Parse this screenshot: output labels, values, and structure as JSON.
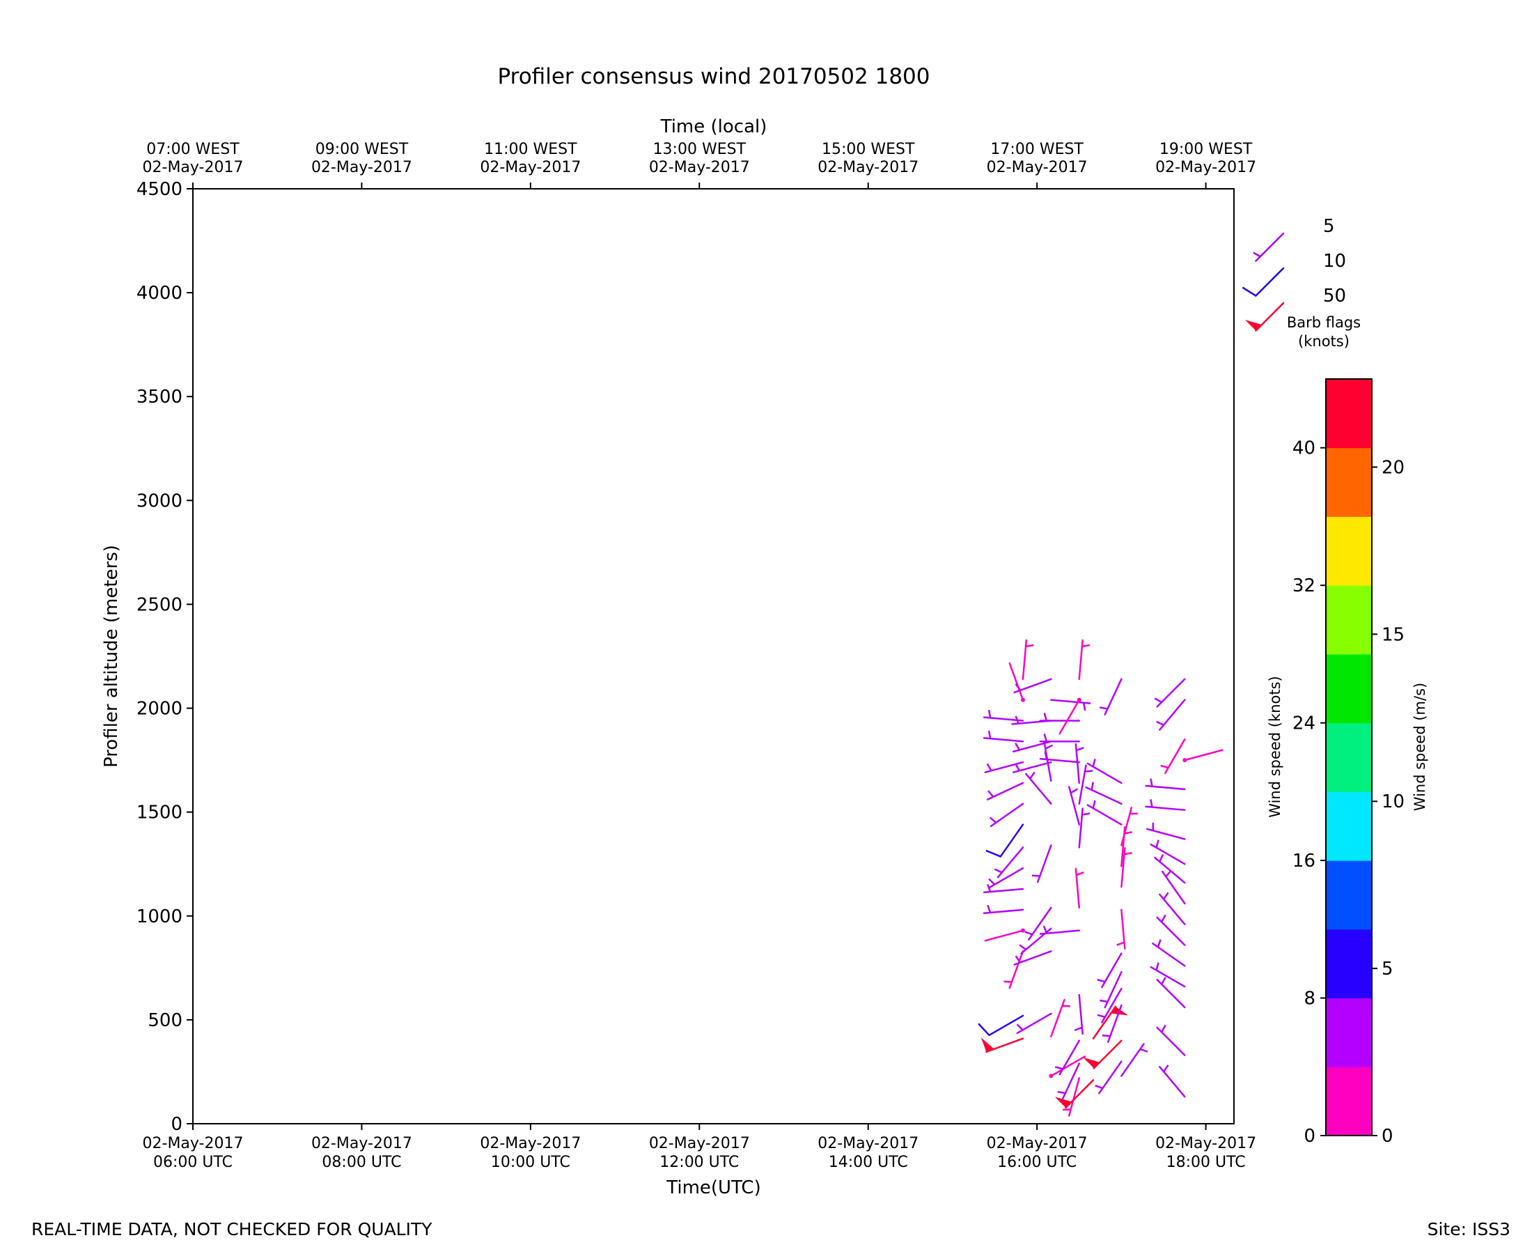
{
  "chart_data": {
    "type": "wind-barb",
    "title": "Profiler consensus wind 20170502 1800",
    "xlabel": "Time(UTC)",
    "xlabel_top": "Time (local)",
    "ylabel": "Profiler altitude (meters)",
    "ylim": [
      0,
      4500
    ],
    "xlim_utc": [
      "2017-05-02T06:00",
      "2017-05-02T18:20"
    ],
    "grid": false,
    "y_ticks": [
      0,
      500,
      1000,
      1500,
      2000,
      2500,
      3000,
      3500,
      4000,
      4500
    ],
    "x_ticks_utc": [
      {
        "time": "2017-05-02T06:00",
        "line1": "02-May-2017",
        "line2": "06:00 UTC"
      },
      {
        "time": "2017-05-02T08:00",
        "line1": "02-May-2017",
        "line2": "08:00 UTC"
      },
      {
        "time": "2017-05-02T10:00",
        "line1": "02-May-2017",
        "line2": "10:00 UTC"
      },
      {
        "time": "2017-05-02T12:00",
        "line1": "02-May-2017",
        "line2": "12:00 UTC"
      },
      {
        "time": "2017-05-02T14:00",
        "line1": "02-May-2017",
        "line2": "14:00 UTC"
      },
      {
        "time": "2017-05-02T16:00",
        "line1": "02-May-2017",
        "line2": "16:00 UTC"
      },
      {
        "time": "2017-05-02T18:00",
        "line1": "02-May-2017",
        "line2": "18:00 UTC"
      }
    ],
    "x_ticks_local": [
      {
        "line1": "07:00 WEST",
        "line2": "02-May-2017"
      },
      {
        "line1": "09:00 WEST",
        "line2": "02-May-2017"
      },
      {
        "line1": "11:00 WEST",
        "line2": "02-May-2017"
      },
      {
        "line1": "13:00 WEST",
        "line2": "02-May-2017"
      },
      {
        "line1": "15:00 WEST",
        "line2": "02-May-2017"
      },
      {
        "line1": "17:00 WEST",
        "line2": "02-May-2017"
      },
      {
        "line1": "19:00 WEST",
        "line2": "02-May-2017"
      }
    ],
    "barb_legend": {
      "entries": [
        {
          "label": "5",
          "color": "#a000ff"
        },
        {
          "label": "10",
          "color": "#2000e0"
        },
        {
          "label": "50",
          "color": "#ff0030"
        }
      ],
      "title_line1": "Barb flags",
      "title_line2": "(knots)"
    },
    "colorbar": {
      "label_left": "Wind speed (knots)",
      "label_right": "Wind speed (m/s)",
      "range_knots": [
        0,
        44
      ],
      "knots_ticks": [
        0,
        8,
        16,
        24,
        32,
        40
      ],
      "ms_ticks": [
        0,
        5,
        10,
        15,
        20
      ],
      "colors": [
        "#ff00c0",
        "#b400ff",
        "#2800ff",
        "#0050ff",
        "#00e8ff",
        "#00f080",
        "#00e800",
        "#88ff00",
        "#ffe800",
        "#ff6600",
        "#ff0030"
      ]
    },
    "series": [
      {
        "time": "2017-05-02T15:50",
        "barbs": [
          {
            "alt": 410,
            "dir": 250,
            "speed_kt": 52
          },
          {
            "alt": 520,
            "dir": 240,
            "speed_kt": 8
          },
          {
            "alt": 830,
            "dir": 200,
            "speed_kt": 3
          },
          {
            "alt": 930,
            "dir": 255,
            "speed_kt": 2
          },
          {
            "alt": 1030,
            "dir": 265,
            "speed_kt": 6
          },
          {
            "alt": 1130,
            "dir": 265,
            "speed_kt": 6
          },
          {
            "alt": 1230,
            "dir": 240,
            "speed_kt": 7
          },
          {
            "alt": 1330,
            "dir": 220,
            "speed_kt": 6
          },
          {
            "alt": 1440,
            "dir": 215,
            "speed_kt": 10
          },
          {
            "alt": 1540,
            "dir": 235,
            "speed_kt": 6
          },
          {
            "alt": 1640,
            "dir": 245,
            "speed_kt": 6
          },
          {
            "alt": 1740,
            "dir": 255,
            "speed_kt": 6
          },
          {
            "alt": 1840,
            "dir": 275,
            "speed_kt": 6
          },
          {
            "alt": 1940,
            "dir": 275,
            "speed_kt": 6
          },
          {
            "alt": 2040,
            "dir": 340,
            "speed_kt": 2
          },
          {
            "alt": 2140,
            "dir": 5,
            "speed_kt": 3
          }
        ]
      },
      {
        "time": "2017-05-02T16:10",
        "barbs": [
          {
            "alt": 230,
            "dir": 60,
            "speed_kt": 2
          },
          {
            "alt": 420,
            "dir": 20,
            "speed_kt": 3
          },
          {
            "alt": 530,
            "dir": 240,
            "speed_kt": 6
          },
          {
            "alt": 830,
            "dir": 250,
            "speed_kt": 4
          },
          {
            "alt": 940,
            "dir": 230,
            "speed_kt": 6
          },
          {
            "alt": 1040,
            "dir": 215,
            "speed_kt": 6
          },
          {
            "alt": 1340,
            "dir": 200,
            "speed_kt": 4
          },
          {
            "alt": 1540,
            "dir": 320,
            "speed_kt": 6
          },
          {
            "alt": 1650,
            "dir": 350,
            "speed_kt": 4
          },
          {
            "alt": 1740,
            "dir": 255,
            "speed_kt": 4
          },
          {
            "alt": 1840,
            "dir": 255,
            "speed_kt": 6
          },
          {
            "alt": 1940,
            "dir": 265,
            "speed_kt": 6
          },
          {
            "alt": 2040,
            "dir": 95,
            "speed_kt": 4
          },
          {
            "alt": 2140,
            "dir": 250,
            "speed_kt": 4
          }
        ]
      },
      {
        "time": "2017-05-02T16:30",
        "barbs": [
          {
            "alt": 220,
            "dir": 195,
            "speed_kt": 3
          },
          {
            "alt": 290,
            "dir": 205,
            "speed_kt": 6
          },
          {
            "alt": 400,
            "dir": 210,
            "speed_kt": 4
          },
          {
            "alt": 620,
            "dir": 175,
            "speed_kt": 4
          },
          {
            "alt": 930,
            "dir": 265,
            "speed_kt": 4
          },
          {
            "alt": 1040,
            "dir": 355,
            "speed_kt": 3
          },
          {
            "alt": 1330,
            "dir": 5,
            "speed_kt": 4
          },
          {
            "alt": 1440,
            "dir": 345,
            "speed_kt": 4
          },
          {
            "alt": 1540,
            "dir": 10,
            "speed_kt": 4
          },
          {
            "alt": 1640,
            "dir": 355,
            "speed_kt": 4
          },
          {
            "alt": 1740,
            "dir": 275,
            "speed_kt": 4
          },
          {
            "alt": 1840,
            "dir": 270,
            "speed_kt": 4
          },
          {
            "alt": 1940,
            "dir": 270,
            "speed_kt": 4
          },
          {
            "alt": 2040,
            "dir": 210,
            "speed_kt": 2
          },
          {
            "alt": 2140,
            "dir": 5,
            "speed_kt": 3
          }
        ]
      },
      {
        "time": "2017-05-02T16:40",
        "barbs": [
          {
            "alt": 210,
            "dir": 225,
            "speed_kt": 52
          },
          {
            "alt": 410,
            "dir": 35,
            "speed_kt": 52
          }
        ]
      },
      {
        "time": "2017-05-02T17:00",
        "barbs": [
          {
            "alt": 230,
            "dir": 35,
            "speed_kt": 6
          },
          {
            "alt": 300,
            "dir": 215,
            "speed_kt": 6
          },
          {
            "alt": 400,
            "dir": 225,
            "speed_kt": 52
          },
          {
            "alt": 570,
            "dir": 200,
            "speed_kt": 4
          },
          {
            "alt": 650,
            "dir": 210,
            "speed_kt": 4
          },
          {
            "alt": 730,
            "dir": 205,
            "speed_kt": 4
          },
          {
            "alt": 820,
            "dir": 210,
            "speed_kt": 4
          },
          {
            "alt": 1030,
            "dir": 175,
            "speed_kt": 3
          },
          {
            "alt": 1140,
            "dir": 5,
            "speed_kt": 3
          },
          {
            "alt": 1240,
            "dir": 5,
            "speed_kt": 3
          },
          {
            "alt": 1340,
            "dir": 15,
            "speed_kt": 3
          },
          {
            "alt": 1440,
            "dir": 300,
            "speed_kt": 4
          },
          {
            "alt": 1540,
            "dir": 295,
            "speed_kt": 4
          },
          {
            "alt": 1640,
            "dir": 300,
            "speed_kt": 5
          },
          {
            "alt": 2140,
            "dir": 205,
            "speed_kt": 4
          }
        ]
      },
      {
        "time": "2017-05-02T17:45",
        "barbs": [
          {
            "alt": 130,
            "dir": 320,
            "speed_kt": 6
          },
          {
            "alt": 330,
            "dir": 315,
            "speed_kt": 6
          },
          {
            "alt": 560,
            "dir": 315,
            "speed_kt": 6
          },
          {
            "alt": 660,
            "dir": 300,
            "speed_kt": 6
          },
          {
            "alt": 760,
            "dir": 305,
            "speed_kt": 6
          },
          {
            "alt": 860,
            "dir": 315,
            "speed_kt": 6
          },
          {
            "alt": 960,
            "dir": 320,
            "speed_kt": 6
          },
          {
            "alt": 1060,
            "dir": 325,
            "speed_kt": 6
          },
          {
            "alt": 1160,
            "dir": 310,
            "speed_kt": 6
          },
          {
            "alt": 1250,
            "dir": 300,
            "speed_kt": 4
          },
          {
            "alt": 1370,
            "dir": 285,
            "speed_kt": 4
          },
          {
            "alt": 1510,
            "dir": 275,
            "speed_kt": 4
          },
          {
            "alt": 1610,
            "dir": 275,
            "speed_kt": 4
          },
          {
            "alt": 1750,
            "dir": 75,
            "speed_kt": 2
          },
          {
            "alt": 1850,
            "dir": 210,
            "speed_kt": 3
          },
          {
            "alt": 2040,
            "dir": 220,
            "speed_kt": 4
          },
          {
            "alt": 2140,
            "dir": 225,
            "speed_kt": 6
          }
        ]
      }
    ]
  },
  "footer": {
    "left": "REAL-TIME DATA, NOT CHECKED FOR QUALITY",
    "right": "Site: ISS3"
  }
}
